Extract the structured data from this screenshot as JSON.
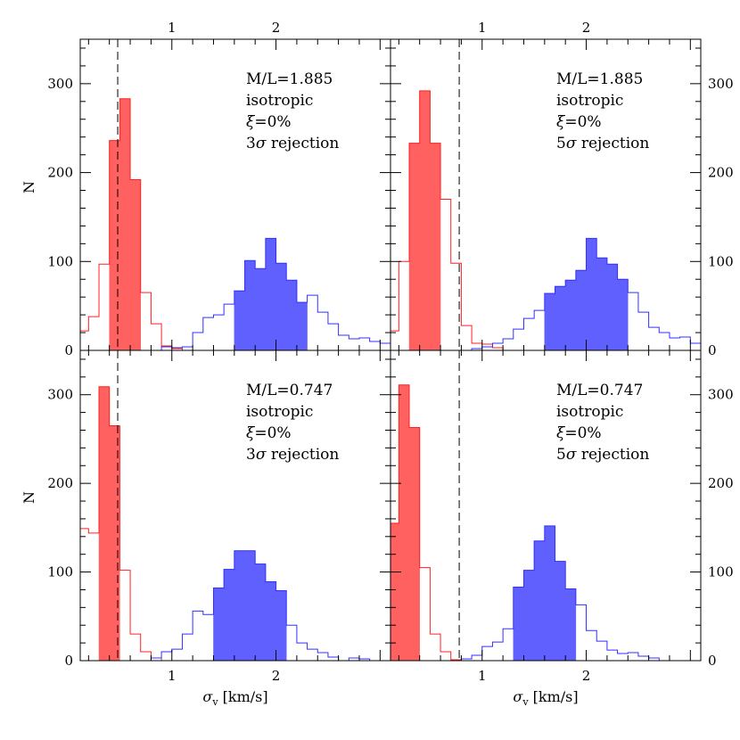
{
  "chart_data": {
    "type": "histogram-grid",
    "xlabel": "σ_v [km/s]",
    "xlabel_sym": "σ",
    "xlabel_sub": "v",
    "xlabel_unit": "[km/s]",
    "ylabel": "N",
    "xlim": [
      0.12,
      3.1
    ],
    "ylim": [
      0,
      350
    ],
    "x_ticks_labeled": [
      1,
      2
    ],
    "y_ticks_labeled": [
      0,
      100,
      200,
      300
    ],
    "colors": {
      "red_fill": "#ff6060",
      "red_line": "#ff2020",
      "blue_fill": "#6060ff",
      "blue_line": "#3030ff",
      "dashed": "#000000"
    },
    "panels": [
      {
        "position": "top-left",
        "annotations": [
          "M/L=1.885",
          "isotropic",
          "=0%",
          "3 rejection"
        ],
        "annotation_symbols": [
          "",
          "",
          "ξ",
          "σ"
        ],
        "dashed_x": 0.48,
        "red": {
          "outline": [
            [
              0.1,
              22
            ],
            [
              0.2,
              38
            ],
            [
              0.3,
              97
            ],
            [
              0.4,
              236
            ],
            [
              0.5,
              283
            ],
            [
              0.6,
              192
            ],
            [
              0.7,
              65
            ],
            [
              0.8,
              30
            ],
            [
              0.9,
              5
            ],
            [
              1.0,
              2
            ],
            [
              1.1,
              0
            ],
            [
              1.2,
              0
            ]
          ],
          "filled": [
            [
              0.4,
              236
            ],
            [
              0.5,
              283
            ],
            [
              0.6,
              192
            ]
          ]
        },
        "blue": {
          "outline": [
            [
              0.7,
              0
            ],
            [
              0.8,
              0
            ],
            [
              0.9,
              4
            ],
            [
              1.0,
              3
            ],
            [
              1.1,
              4
            ],
            [
              1.2,
              20
            ],
            [
              1.3,
              37
            ],
            [
              1.4,
              40
            ],
            [
              1.5,
              52
            ],
            [
              1.6,
              67
            ],
            [
              1.7,
              101
            ],
            [
              1.8,
              92
            ],
            [
              1.9,
              126
            ],
            [
              2.0,
              98
            ],
            [
              2.1,
              79
            ],
            [
              2.2,
              54
            ],
            [
              2.3,
              62
            ],
            [
              2.4,
              43
            ],
            [
              2.5,
              30
            ],
            [
              2.6,
              17
            ],
            [
              2.7,
              13
            ],
            [
              2.8,
              14
            ],
            [
              2.9,
              10
            ],
            [
              3.0,
              8
            ]
          ],
          "filled": [
            [
              1.6,
              67
            ],
            [
              1.7,
              101
            ],
            [
              1.8,
              92
            ],
            [
              1.9,
              126
            ],
            [
              2.0,
              98
            ],
            [
              2.1,
              79
            ],
            [
              2.2,
              54
            ]
          ]
        }
      },
      {
        "position": "top-right",
        "annotations": [
          "M/L=1.885",
          "isotropic",
          "=0%",
          "5 rejection"
        ],
        "annotation_symbols": [
          "",
          "",
          "ξ",
          "σ"
        ],
        "dashed_x": 0.78,
        "red": {
          "outline": [
            [
              0.1,
              22
            ],
            [
              0.2,
              100
            ],
            [
              0.3,
              233
            ],
            [
              0.4,
              292
            ],
            [
              0.5,
              233
            ],
            [
              0.6,
              170
            ],
            [
              0.7,
              98
            ],
            [
              0.8,
              28
            ],
            [
              0.9,
              8
            ],
            [
              1.0,
              7
            ],
            [
              1.1,
              3
            ],
            [
              1.2,
              0
            ]
          ],
          "filled": [
            [
              0.3,
              233
            ],
            [
              0.4,
              292
            ],
            [
              0.5,
              233
            ]
          ]
        },
        "blue": {
          "outline": [
            [
              0.8,
              0
            ],
            [
              0.9,
              2
            ],
            [
              1.0,
              4
            ],
            [
              1.1,
              8
            ],
            [
              1.2,
              13
            ],
            [
              1.3,
              24
            ],
            [
              1.4,
              36
            ],
            [
              1.5,
              45
            ],
            [
              1.6,
              64
            ],
            [
              1.7,
              72
            ],
            [
              1.8,
              79
            ],
            [
              1.9,
              90
            ],
            [
              2.0,
              126
            ],
            [
              2.1,
              104
            ],
            [
              2.2,
              97
            ],
            [
              2.3,
              80
            ],
            [
              2.4,
              65
            ],
            [
              2.5,
              43
            ],
            [
              2.6,
              26
            ],
            [
              2.7,
              20
            ],
            [
              2.8,
              14
            ],
            [
              2.9,
              15
            ],
            [
              3.0,
              8
            ]
          ],
          "filled": [
            [
              1.6,
              64
            ],
            [
              1.7,
              72
            ],
            [
              1.8,
              79
            ],
            [
              1.9,
              90
            ],
            [
              2.0,
              126
            ],
            [
              2.1,
              104
            ],
            [
              2.2,
              97
            ],
            [
              2.3,
              80
            ]
          ]
        }
      },
      {
        "position": "bottom-left",
        "annotations": [
          "M/L=0.747",
          "isotropic",
          "=0%",
          "3 rejection"
        ],
        "annotation_symbols": [
          "",
          "",
          "ξ",
          "σ"
        ],
        "dashed_x": 0.48,
        "red": {
          "outline": [
            [
              0.1,
              149
            ],
            [
              0.2,
              144
            ],
            [
              0.3,
              309
            ],
            [
              0.4,
              265
            ],
            [
              0.5,
              102
            ],
            [
              0.6,
              30
            ],
            [
              0.7,
              10
            ],
            [
              0.8,
              3
            ],
            [
              0.9,
              0
            ]
          ],
          "filled": [
            [
              0.3,
              309
            ],
            [
              0.4,
              265
            ]
          ]
        },
        "blue": {
          "outline": [
            [
              0.7,
              0
            ],
            [
              0.8,
              3
            ],
            [
              0.9,
              10
            ],
            [
              1.0,
              13
            ],
            [
              1.1,
              30
            ],
            [
              1.2,
              56
            ],
            [
              1.3,
              52
            ],
            [
              1.4,
              82
            ],
            [
              1.5,
              103
            ],
            [
              1.6,
              124
            ],
            [
              1.7,
              124
            ],
            [
              1.8,
              109
            ],
            [
              1.9,
              89
            ],
            [
              2.0,
              79
            ],
            [
              2.1,
              40
            ],
            [
              2.2,
              20
            ],
            [
              2.3,
              13
            ],
            [
              2.4,
              9
            ],
            [
              2.5,
              4
            ],
            [
              2.6,
              0
            ],
            [
              2.7,
              3
            ],
            [
              2.8,
              2
            ],
            [
              2.9,
              0
            ]
          ],
          "filled": [
            [
              1.4,
              82
            ],
            [
              1.5,
              103
            ],
            [
              1.6,
              124
            ],
            [
              1.7,
              124
            ],
            [
              1.8,
              109
            ],
            [
              1.9,
              89
            ],
            [
              2.0,
              79
            ]
          ]
        }
      },
      {
        "position": "bottom-right",
        "annotations": [
          "M/L=0.747",
          "isotropic",
          "=0%",
          "5 rejection"
        ],
        "annotation_symbols": [
          "",
          "",
          "ξ",
          "σ"
        ],
        "dashed_x": 0.78,
        "red": {
          "outline": [
            [
              0.1,
              155
            ],
            [
              0.2,
              311
            ],
            [
              0.3,
              263
            ],
            [
              0.4,
              105
            ],
            [
              0.5,
              30
            ],
            [
              0.6,
              10
            ],
            [
              0.7,
              1
            ],
            [
              0.8,
              0
            ]
          ],
          "filled": [
            [
              0.1,
              155
            ],
            [
              0.2,
              311
            ],
            [
              0.3,
              263
            ]
          ]
        },
        "blue": {
          "outline": [
            [
              0.7,
              0
            ],
            [
              0.8,
              2
            ],
            [
              0.9,
              6
            ],
            [
              1.0,
              16
            ],
            [
              1.1,
              21
            ],
            [
              1.2,
              36
            ],
            [
              1.3,
              83
            ],
            [
              1.4,
              102
            ],
            [
              1.5,
              135
            ],
            [
              1.6,
              152
            ],
            [
              1.7,
              112
            ],
            [
              1.8,
              81
            ],
            [
              1.9,
              63
            ],
            [
              2.0,
              34
            ],
            [
              2.1,
              22
            ],
            [
              2.2,
              12
            ],
            [
              2.3,
              8
            ],
            [
              2.4,
              9
            ],
            [
              2.5,
              5
            ],
            [
              2.6,
              3
            ],
            [
              2.7,
              0
            ]
          ],
          "filled": [
            [
              1.3,
              83
            ],
            [
              1.4,
              102
            ],
            [
              1.5,
              135
            ],
            [
              1.6,
              152
            ],
            [
              1.7,
              112
            ],
            [
              1.8,
              81
            ]
          ]
        }
      }
    ]
  }
}
